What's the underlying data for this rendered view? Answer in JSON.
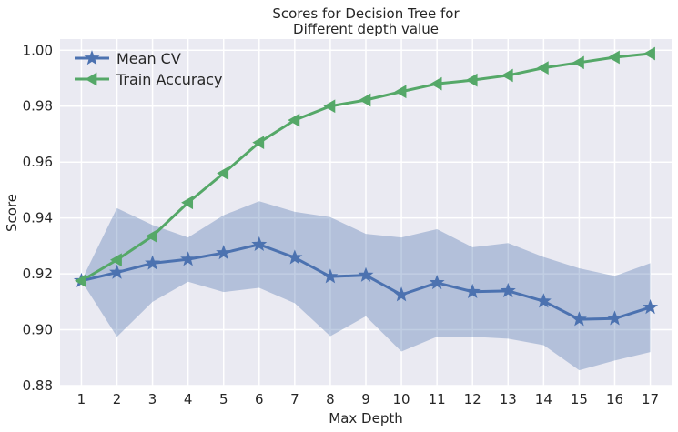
{
  "chart_data": {
    "type": "line",
    "title_lines": [
      "Scores for Decision Tree for",
      "Different depth value"
    ],
    "xlabel": "Max Depth",
    "ylabel": "Score",
    "x": [
      1,
      2,
      3,
      4,
      5,
      6,
      7,
      8,
      9,
      10,
      11,
      12,
      13,
      14,
      15,
      16,
      17
    ],
    "xlim": [
      0.4,
      17.6
    ],
    "ylim": [
      0.88,
      1.004
    ],
    "yticks": [
      "0.88",
      "0.90",
      "0.92",
      "0.94",
      "0.96",
      "0.98",
      "1.00"
    ],
    "grid": true,
    "legend_position": "top-left",
    "series": [
      {
        "name": "Mean CV",
        "color": "#4c72b0",
        "marker": "star",
        "values": [
          0.9175,
          0.9205,
          0.9238,
          0.9252,
          0.9275,
          0.9305,
          0.9258,
          0.919,
          0.9195,
          0.9125,
          0.9168,
          0.9136,
          0.9139,
          0.9102,
          0.9037,
          0.904,
          0.908
        ],
        "band_upper": [
          0.9175,
          0.9435,
          0.9375,
          0.933,
          0.941,
          0.946,
          0.9422,
          0.9403,
          0.9343,
          0.933,
          0.936,
          0.9295,
          0.931,
          0.926,
          0.922,
          0.9192,
          0.9238
        ],
        "band_lower": [
          0.9175,
          0.8975,
          0.91,
          0.9172,
          0.9135,
          0.915,
          0.9095,
          0.8977,
          0.9048,
          0.8922,
          0.8975,
          0.8975,
          0.8968,
          0.8945,
          0.8855,
          0.889,
          0.892
        ],
        "band_color": "#4c72b0"
      },
      {
        "name": "Train Accuracy",
        "color": "#55a868",
        "marker": "triangle-left",
        "values": [
          0.9175,
          0.925,
          0.9335,
          0.9455,
          0.956,
          0.967,
          0.975,
          0.98,
          0.9822,
          0.9852,
          0.988,
          0.9893,
          0.991,
          0.9937,
          0.9956,
          0.9975,
          0.9988
        ]
      }
    ]
  }
}
